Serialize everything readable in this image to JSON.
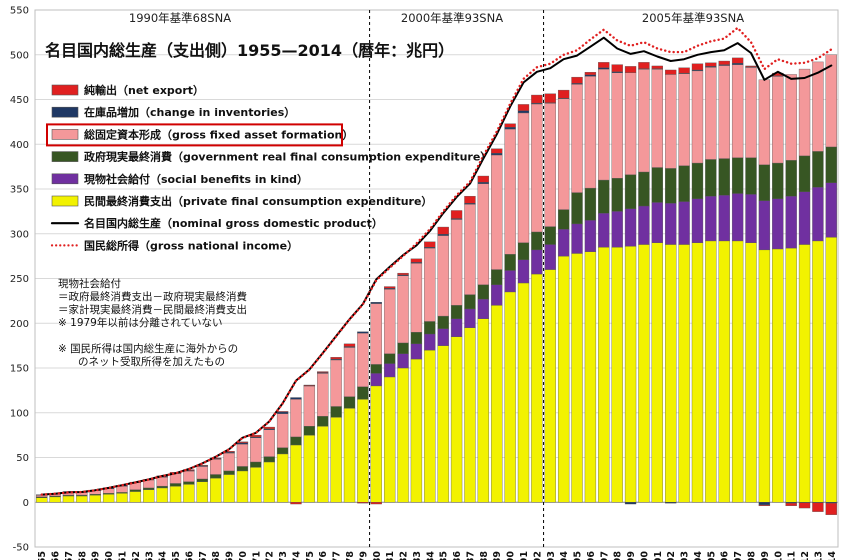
{
  "chart_data": {
    "type": "bar",
    "title": "名目国内総生産（支出側）1955—2014（暦年：兆円）",
    "eras": [
      "1990年基準68SNA",
      "2000年基準93SNA",
      "2005年基準93SNA"
    ],
    "ylim": [
      -50,
      550
    ],
    "yticks": [
      -50,
      0,
      50,
      100,
      150,
      200,
      250,
      300,
      350,
      400,
      450,
      500,
      550
    ],
    "grid": true,
    "categories": [
      "1955",
      "1956",
      "1957",
      "1958",
      "1959",
      "1960",
      "1961",
      "1962",
      "1963",
      "1964",
      "1965",
      "1966",
      "1967",
      "1968",
      "1969",
      "1970",
      "1971",
      "1972",
      "1973",
      "1974",
      "1975",
      "1976",
      "1977",
      "1978",
      "1979",
      "1980",
      "1981",
      "1982",
      "1983",
      "1984",
      "1985",
      "1986",
      "1987",
      "1988",
      "1989",
      "1990",
      "1991",
      "1992",
      "1993",
      "1994",
      "1995",
      "1996",
      "1997",
      "1998",
      "1999",
      "2000",
      "2001",
      "2002",
      "2003",
      "2004",
      "2005",
      "2006",
      "2007",
      "2008",
      "2009",
      "2010",
      "2011",
      "2012",
      "2013",
      "2014"
    ],
    "series": [
      {
        "name": "民間最終消費支出（private final consumption expenditure）",
        "color": "#f2f200",
        "values": [
          5,
          6,
          7,
          7,
          8,
          9,
          10,
          12,
          14,
          16,
          18,
          20,
          23,
          27,
          31,
          35,
          39,
          45,
          54,
          64,
          75,
          85,
          95,
          105,
          115,
          130,
          140,
          150,
          160,
          170,
          175,
          185,
          195,
          205,
          220,
          235,
          245,
          255,
          260,
          275,
          278,
          280,
          285,
          285,
          286,
          288,
          290,
          288,
          288,
          290,
          292,
          292,
          292,
          290,
          282,
          283,
          284,
          288,
          292,
          296
        ]
      },
      {
        "name": "現物社会給付（social benefits in kind）",
        "color": "#7030a0",
        "values": [
          0,
          0,
          0,
          0,
          0,
          0,
          0,
          0,
          0,
          0,
          0,
          0,
          0,
          0,
          0,
          0,
          0,
          0,
          0,
          0,
          0,
          0,
          0,
          0,
          0,
          14,
          15,
          16,
          17,
          18,
          19,
          20,
          21,
          22,
          23,
          24,
          26,
          27,
          28,
          30,
          33,
          35,
          38,
          40,
          42,
          43,
          45,
          46,
          48,
          49,
          50,
          51,
          53,
          54,
          55,
          56,
          58,
          59,
          60,
          61
        ]
      },
      {
        "name": "政府現実最終消費（government real final consumption expenditure）",
        "color": "#375623",
        "values": [
          1,
          1,
          1,
          1,
          1,
          1,
          1,
          2,
          2,
          2,
          3,
          3,
          3,
          4,
          4,
          5,
          6,
          6,
          7,
          9,
          10,
          11,
          12,
          13,
          14,
          10,
          11,
          12,
          13,
          14,
          14,
          15,
          16,
          16,
          17,
          18,
          19,
          20,
          20,
          22,
          35,
          36,
          37,
          37,
          38,
          38,
          39,
          39,
          40,
          40,
          41,
          41,
          40,
          41,
          40,
          40,
          40,
          40,
          40,
          40
        ]
      },
      {
        "name": "総固定資本形成（gross fixed asset formation）",
        "color": "#f4989a",
        "values": [
          2,
          2,
          3,
          3,
          4,
          5,
          7,
          8,
          9,
          10,
          11,
          12,
          14,
          17,
          20,
          25,
          27,
          30,
          38,
          42,
          45,
          48,
          52,
          55,
          60,
          68,
          72,
          75,
          77,
          82,
          90,
          96,
          101,
          113,
          128,
          140,
          145,
          143,
          138,
          124,
          121,
          125,
          124,
          118,
          114,
          115,
          110,
          105,
          103,
          103,
          103,
          104,
          104,
          101,
          95,
          97,
          96,
          97,
          100,
          103
        ]
      },
      {
        "name": "在庫品増加（change in inventories）",
        "color": "#1f3864",
        "values": [
          0.5,
          0.5,
          1,
          0.5,
          0.5,
          1,
          1,
          0.5,
          0.5,
          1,
          0.5,
          0.5,
          1,
          1,
          1,
          1.5,
          1,
          1,
          2,
          2,
          0.5,
          1,
          1,
          1,
          1.5,
          1.5,
          1,
          1,
          1,
          1,
          1.5,
          1,
          1,
          1.5,
          2,
          2,
          2.5,
          1,
          0.5,
          0.5,
          1,
          1.5,
          1.5,
          1,
          -2,
          0.5,
          0.5,
          -1,
          0.5,
          1,
          1,
          1,
          1.5,
          0.5,
          -3,
          0.5,
          -1,
          -0.5,
          -0.5,
          -1
        ]
      },
      {
        "name": "純輸出（net export）",
        "color": "#e02020",
        "values": [
          0,
          0,
          0,
          0,
          0,
          0,
          0,
          0,
          0,
          0.5,
          1,
          1,
          0.5,
          0.5,
          1,
          1,
          2,
          2,
          0.5,
          -2,
          0.5,
          1,
          2,
          3,
          -1,
          -2,
          2,
          2,
          4,
          6,
          8,
          9,
          8,
          7,
          5,
          4,
          7,
          9,
          10,
          9,
          7,
          3,
          6,
          8,
          7,
          7,
          3,
          5,
          6,
          7,
          4,
          4,
          6,
          1,
          -1,
          3,
          -3,
          -6,
          -10,
          -13
        ]
      }
    ],
    "lines": [
      {
        "name": "名目国内総生産（nominal gross domestic product）",
        "color": "#000000",
        "style": "solid",
        "values": [
          8.6,
          9.6,
          11.1,
          11.5,
          13.5,
          16.0,
          19.1,
          22.2,
          25.5,
          29.3,
          32.4,
          37.1,
          43.4,
          50.8,
          59.3,
          72.0,
          77.5,
          90.2,
          110.5,
          135.9,
          148.3,
          166.6,
          185.6,
          204.4,
          221.5,
          249,
          263,
          276,
          287,
          303,
          323,
          341,
          356,
          384,
          411,
          442,
          469,
          481,
          485,
          495,
          499,
          509,
          519,
          507,
          501,
          504,
          498,
          493,
          495,
          500,
          503,
          505,
          513,
          502,
          472,
          481,
          473,
          474,
          480,
          488
        ]
      },
      {
        "name": "国民総所得（gross national income）",
        "color": "#e02020",
        "style": "dotted",
        "values": [
          8.5,
          9.5,
          11.0,
          11.4,
          13.4,
          15.9,
          19.0,
          22.1,
          25.4,
          29.2,
          32.3,
          37.0,
          43.3,
          50.7,
          59.2,
          71.8,
          77.4,
          90.1,
          110.3,
          135.6,
          148.1,
          166.3,
          185.3,
          204.1,
          221.2,
          248,
          262,
          275,
          289,
          305,
          325,
          343,
          358,
          387,
          414,
          445,
          473,
          486,
          490,
          500,
          505,
          517,
          528,
          516,
          510,
          514,
          507,
          503,
          503,
          510,
          515,
          518,
          530,
          514,
          484,
          495,
          490,
          491,
          496,
          506
        ]
      }
    ]
  },
  "notes": [
    "現物社会給付",
    "＝政府最終消費支出－政府現実最終消費",
    "＝家計現実最終消費－民間最終消費支出",
    "※ 1979年以前は分離されていない",
    "",
    "※ 国民所得は国内総生産に海外からの",
    "のネット受取所得を加えたもの"
  ],
  "highlight_color": "#d00000"
}
